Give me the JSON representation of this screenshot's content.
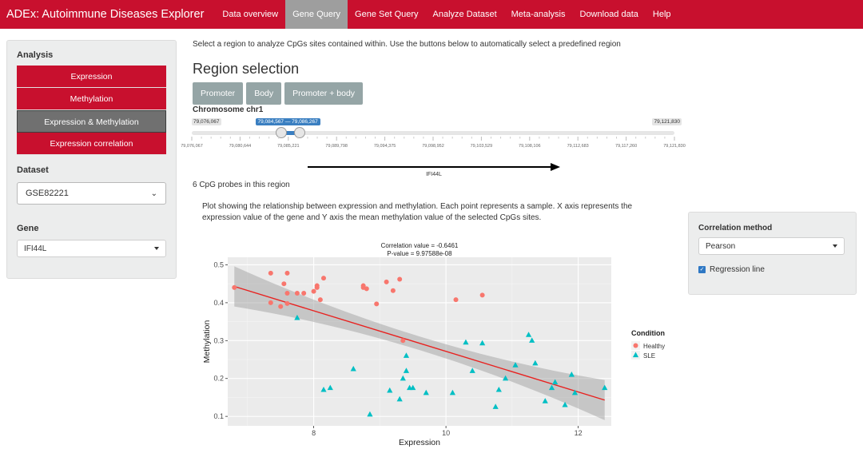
{
  "navbar": {
    "brand": "ADEx: Autoimmune Diseases Explorer",
    "tabs": [
      {
        "label": "Data overview",
        "active": false
      },
      {
        "label": "Gene Query",
        "active": true
      },
      {
        "label": "Gene Set Query",
        "active": false
      },
      {
        "label": "Analyze Dataset",
        "active": false
      },
      {
        "label": "Meta-analysis",
        "active": false
      },
      {
        "label": "Download data",
        "active": false
      },
      {
        "label": "Help",
        "active": false
      }
    ]
  },
  "sidebar": {
    "analysis_label": "Analysis",
    "analysis_buttons": [
      {
        "label": "Expression",
        "active": false
      },
      {
        "label": "Methylation",
        "active": false
      },
      {
        "label": "Expression & Methylation",
        "active": true
      },
      {
        "label": "Expression correlation",
        "active": false
      }
    ],
    "dataset_label": "Dataset",
    "dataset_value": "GSE82221",
    "gene_label": "Gene",
    "gene_value": "IFI44L"
  },
  "main": {
    "intro": "Select a region to analyze CpGs sites contained within. Use the buttons below to automatically select a predefined region",
    "region_title": "Region selection",
    "region_buttons": [
      "Promoter",
      "Body",
      "Promoter + body"
    ],
    "chromosome_label": "Chromosome chr1",
    "slider": {
      "min_label": "79,076,067",
      "max_label": "79,121,830",
      "range_label": "79,084,567 — 79,086,267",
      "range_start_fraction": 0.186,
      "range_end_fraction": 0.223,
      "ticks": [
        "79,076,067",
        "79,080,644",
        "79,085,221",
        "79,089,798",
        "79,094,375",
        "79,098,952",
        "79,103,529",
        "79,108,106",
        "79,112,683",
        "79,117,260",
        "79,121,830"
      ]
    },
    "gene_name": "IFI44L",
    "probes_text": "6 CpG probes in this region",
    "plot_description": "Plot showing the relationship between expression and methylation. Each point represents a sample. X axis represents the expression value of the gene and Y axis the mean methylation value of the selected CpGs sites."
  },
  "chart_data": {
    "type": "scatter",
    "title": "Correlation value = -0.6461",
    "subtitle": "P-value = 9.97588e-08",
    "xlabel": "Expression",
    "ylabel": "Methylation",
    "xlim": [
      6.7,
      12.5
    ],
    "ylim": [
      0.075,
      0.52
    ],
    "xticks": [
      8,
      10,
      12
    ],
    "yticks": [
      0.1,
      0.2,
      0.3,
      0.4,
      0.5
    ],
    "grid": true,
    "legend_title": "Condition",
    "legend_position": "right",
    "regression": {
      "x": [
        6.8,
        12.4
      ],
      "y": [
        0.443,
        0.143
      ]
    },
    "series": [
      {
        "name": "Healthy",
        "color": "#f8766d",
        "marker": "circle",
        "x": [
          6.8,
          7.35,
          7.35,
          7.5,
          7.55,
          7.6,
          7.6,
          7.6,
          7.75,
          7.85,
          8.0,
          8.05,
          8.05,
          8.1,
          8.15,
          8.75,
          8.75,
          8.8,
          8.95,
          9.1,
          9.2,
          9.3,
          9.35,
          10.15,
          10.55
        ],
        "y": [
          0.44,
          0.478,
          0.4,
          0.39,
          0.45,
          0.478,
          0.425,
          0.398,
          0.425,
          0.425,
          0.43,
          0.445,
          0.44,
          0.408,
          0.465,
          0.445,
          0.44,
          0.437,
          0.397,
          0.455,
          0.432,
          0.462,
          0.3,
          0.408,
          0.42
        ]
      },
      {
        "name": "SLE",
        "color": "#00bfc4",
        "marker": "triangle",
        "x": [
          7.75,
          8.15,
          8.25,
          8.6,
          8.85,
          9.15,
          9.3,
          9.35,
          9.4,
          9.4,
          9.45,
          9.5,
          9.7,
          10.1,
          10.3,
          10.4,
          10.55,
          10.75,
          10.8,
          10.9,
          11.05,
          11.25,
          11.3,
          11.35,
          11.5,
          11.6,
          11.65,
          11.8,
          11.9,
          11.95,
          12.4
        ],
        "y": [
          0.36,
          0.17,
          0.175,
          0.225,
          0.105,
          0.168,
          0.145,
          0.2,
          0.26,
          0.22,
          0.175,
          0.175,
          0.162,
          0.162,
          0.295,
          0.22,
          0.293,
          0.125,
          0.17,
          0.2,
          0.235,
          0.315,
          0.3,
          0.24,
          0.14,
          0.175,
          0.19,
          0.13,
          0.21,
          0.162,
          0.175
        ]
      }
    ]
  },
  "right_panel": {
    "method_label": "Correlation method",
    "method_value": "Pearson",
    "regression_label": "Regression line",
    "regression_checked": true
  }
}
